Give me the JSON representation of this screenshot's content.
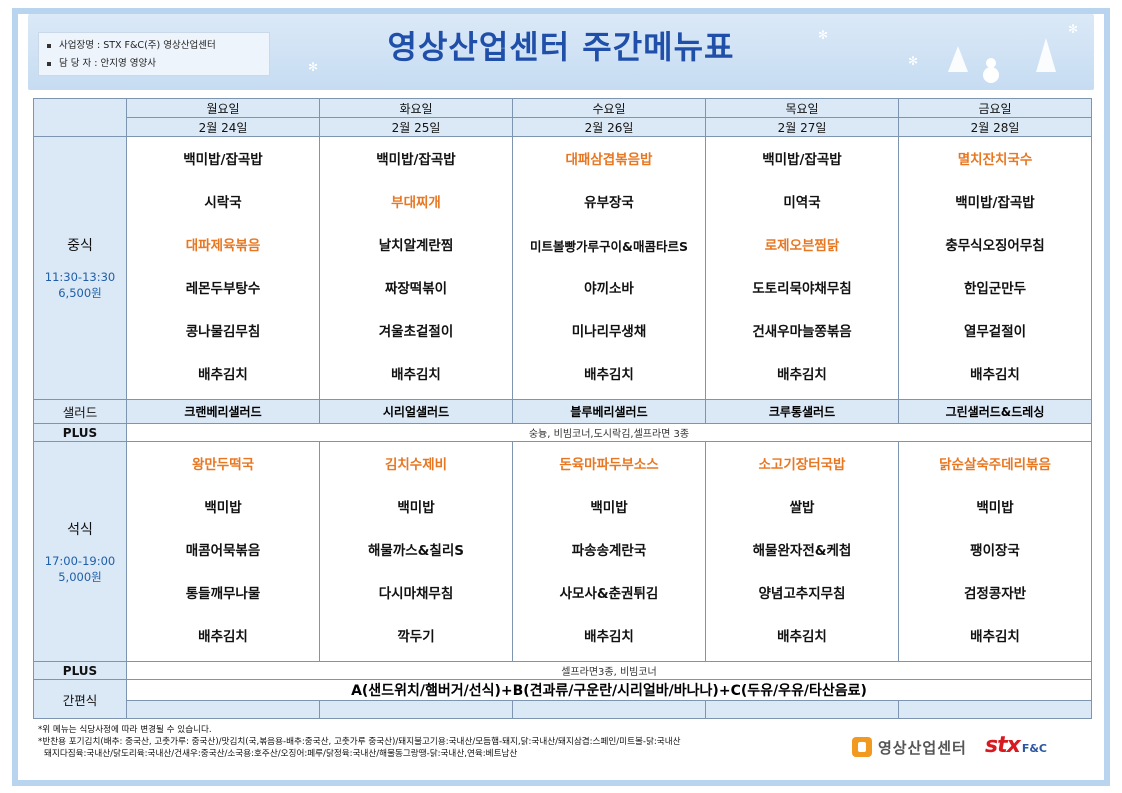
{
  "header": {
    "info_line1": "사업장명 : STX F&C(주) 영상산업센터",
    "info_line2": "담 당 자  : 안지영 영양사",
    "title": "영상산업센터 주간메뉴표"
  },
  "days": [
    {
      "day": "월요일",
      "date": "2월 24일"
    },
    {
      "day": "화요일",
      "date": "2월 25일"
    },
    {
      "day": "수요일",
      "date": "2월 26일"
    },
    {
      "day": "목요일",
      "date": "2월 27일"
    },
    {
      "day": "금요일",
      "date": "2월 28일"
    }
  ],
  "lunch": {
    "label": "중식",
    "time": "11:30-13:30",
    "price": "6,500원",
    "menus": [
      [
        "백미밥/잡곡밥",
        "시락국",
        "대파제육볶음",
        "레몬두부탕수",
        "콩나물김무침",
        "배추김치"
      ],
      [
        "백미밥/잡곡밥",
        "부대찌개",
        "날치알계란찜",
        "짜장떡볶이",
        "겨울초겉절이",
        "배추김치"
      ],
      [
        "대패삼겹볶음밥",
        "유부장국",
        "미트볼빵가루구이&매콤타르S",
        "야끼소바",
        "미나리무생채",
        "배추김치"
      ],
      [
        "백미밥/잡곡밥",
        "미역국",
        "로제오븐찜닭",
        "도토리묵야채무침",
        "건새우마늘쫑볶음",
        "배추김치"
      ],
      [
        "멸치잔치국수",
        "백미밥/잡곡밥",
        "충무식오징어무침",
        "한입군만두",
        "열무겉절이",
        "배추김치"
      ]
    ]
  },
  "salad": {
    "label": "샐러드",
    "items": [
      "크랜베리샐러드",
      "시리얼샐러드",
      "블루베리샐러드",
      "크루통샐러드",
      "그린샐러드&드레싱"
    ]
  },
  "plus_lunch": {
    "label": "PLUS",
    "text": "숭늉, 비빔코너,도시락김,셀프라면 3종"
  },
  "dinner": {
    "label": "석식",
    "time": "17:00-19:00",
    "price": "5,000원",
    "menus": [
      [
        "왕만두떡국",
        "백미밥",
        "매콤어묵볶음",
        "통들깨무나물",
        "배추김치"
      ],
      [
        "김치수제비",
        "백미밥",
        "해물까스&칠리S",
        "다시마채무침",
        "깍두기"
      ],
      [
        "돈육마파두부소스",
        "백미밥",
        "파송송계란국",
        "사모사&춘권튀김",
        "배추김치"
      ],
      [
        "소고기장터국밥",
        "쌀밥",
        "해물완자전&케첩",
        "양념고추지무침",
        "배추김치"
      ],
      [
        "닭순살숙주데리볶음",
        "백미밥",
        "팽이장국",
        "검정콩자반",
        "배추김치"
      ]
    ]
  },
  "plus_dinner": {
    "label": "PLUS",
    "text": "셀프라면3종, 비빔코너"
  },
  "snack": {
    "label": "간편식",
    "text": "A(샌드위치/햄버거/선식)+B(견과류/구운란/시리얼바/바나나)+C(두유/우유/타산음료)"
  },
  "notes": {
    "line1": "*위 메뉴는 식당사정에 따라 변경될 수 있습니다.",
    "line2": "*반찬용 포기김치(배추: 중국산, 고춧가루: 중국산)/맛김치(국,볶음용-배추:중국산, 고춧가루 중국산)/돼지불고기용:국내산/모듬햄-돼지,닭:국내산/돼지삼겹:스페인/미트볼-닭:국내산",
    "line3": "돼지다짐육:국내산/닭도리육:국내산/건새우:중국산/소국용:호주산/오징어:페루/닭정육:국내산/해물동그랑땡-닭:국내산,연육:베트남산"
  },
  "logos": {
    "center": "영상산업센터",
    "stx": "stx",
    "stx_sub": "F&C"
  },
  "colors": {
    "highlight": "#e87722",
    "header_bg": "#c6dcf2",
    "title": "#1f4fa8",
    "cell_bg": "#dbe8f5"
  }
}
